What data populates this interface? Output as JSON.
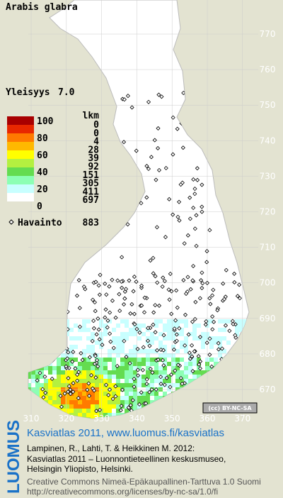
{
  "title": "Arabis glabra",
  "frequency": {
    "label": "Yleisyys",
    "value": "7.0"
  },
  "legend": {
    "scale": [
      100,
      80,
      60,
      40,
      20,
      0
    ],
    "count_header": "lkm",
    "counts": [
      0,
      0,
      4,
      28,
      39,
      92,
      151,
      305,
      411,
      697
    ],
    "colors": [
      "#a80000",
      "#e82800",
      "#ff7a00",
      "#ffb800",
      "#ffff00",
      "#b4f040",
      "#64dc50",
      "#8cffb4",
      "#c8ffff",
      "#ffffff"
    ]
  },
  "observations": {
    "label": "Havainto",
    "value": 883
  },
  "grid": {
    "northing": [
      770,
      760,
      750,
      740,
      730,
      720,
      710,
      700,
      690,
      680,
      670
    ],
    "easting": [
      310,
      320,
      330,
      340,
      350,
      360,
      370
    ]
  },
  "license_badge": "(cc) BY-NC-SA",
  "logo": "LUOMUS",
  "footer": {
    "heading": "Kasviatlas 2011, www.luomus.fi/kasviatlas",
    "citation": [
      "Lampinen, R., Lahti, T. & Heikkinen M. 2012:",
      "Kasviatlas 2011 – Luonnontieteellinen keskusmuseo,",
      "Helsingin Yliopisto, Helsinki."
    ],
    "license": [
      "Creative Commons Nimeä-Epäkaupallinen-Tarttuva 1.0 Suomi",
      "http://creativecommons.org/licenses/by-nc-sa/1.0/fi"
    ]
  }
}
